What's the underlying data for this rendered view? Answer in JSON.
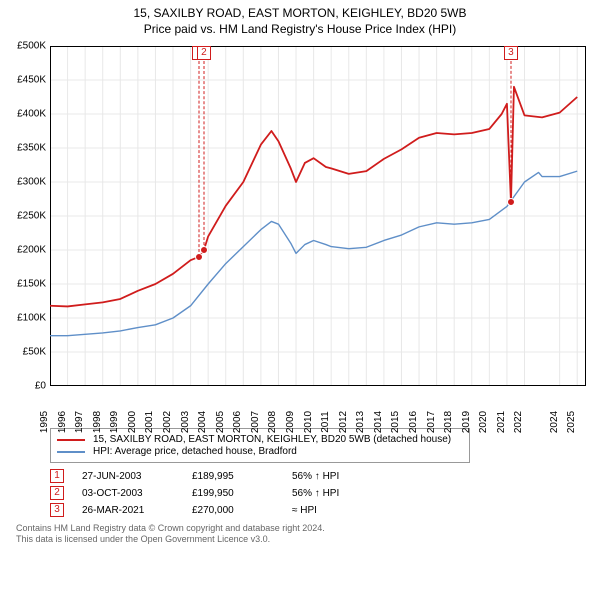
{
  "title": "15, SAXILBY ROAD, EAST MORTON, KEIGHLEY, BD20 5WB",
  "subtitle": "Price paid vs. HM Land Registry's House Price Index (HPI)",
  "chart": {
    "type": "line",
    "background_color": "#ffffff",
    "grid_color": "#e8e8e8",
    "axis_color": "#000000",
    "font_size_labels": 10,
    "x": {
      "min": 1995,
      "max": 2025.5,
      "ticks": [
        1995,
        1996,
        1997,
        1998,
        1999,
        2000,
        2001,
        2002,
        2003,
        2004,
        2005,
        2006,
        2007,
        2008,
        2009,
        2010,
        2011,
        2012,
        2013,
        2014,
        2015,
        2016,
        2017,
        2018,
        2019,
        2020,
        2021,
        2022,
        2024,
        2025
      ]
    },
    "y": {
      "min": 0,
      "max": 500000,
      "tick_step": 50000,
      "prefix": "£",
      "suffix": "K",
      "divide": 1000
    },
    "series": [
      {
        "name": "15, SAXILBY ROAD, EAST MORTON, KEIGHLEY, BD20 5WB (detached house)",
        "color": "#d01c1c",
        "line_width": 1.8,
        "points": [
          [
            1995,
            118000
          ],
          [
            1996,
            117000
          ],
          [
            1997,
            120000
          ],
          [
            1998,
            123000
          ],
          [
            1999,
            128000
          ],
          [
            2000,
            140000
          ],
          [
            2001,
            150000
          ],
          [
            2002,
            165000
          ],
          [
            2003,
            185000
          ],
          [
            2003.48,
            189995
          ],
          [
            2003.76,
            199950
          ],
          [
            2004,
            220000
          ],
          [
            2005,
            265000
          ],
          [
            2006,
            300000
          ],
          [
            2007,
            355000
          ],
          [
            2007.6,
            375000
          ],
          [
            2008,
            360000
          ],
          [
            2008.7,
            320000
          ],
          [
            2009,
            300000
          ],
          [
            2009.5,
            328000
          ],
          [
            2010,
            335000
          ],
          [
            2010.7,
            322000
          ],
          [
            2011,
            320000
          ],
          [
            2012,
            312000
          ],
          [
            2013,
            316000
          ],
          [
            2014,
            334000
          ],
          [
            2015,
            348000
          ],
          [
            2016,
            365000
          ],
          [
            2017,
            372000
          ],
          [
            2018,
            370000
          ],
          [
            2019,
            372000
          ],
          [
            2020,
            378000
          ],
          [
            2020.7,
            400000
          ],
          [
            2021,
            415000
          ],
          [
            2021.23,
            270000
          ],
          [
            2021.4,
            440000
          ],
          [
            2022,
            398000
          ],
          [
            2023,
            395000
          ],
          [
            2024,
            402000
          ],
          [
            2025,
            425000
          ]
        ]
      },
      {
        "name": "HPI: Average price, detached house, Bradford",
        "color": "#5f8fc8",
        "line_width": 1.4,
        "points": [
          [
            1995,
            74000
          ],
          [
            1996,
            74000
          ],
          [
            1997,
            76000
          ],
          [
            1998,
            78000
          ],
          [
            1999,
            81000
          ],
          [
            2000,
            86000
          ],
          [
            2001,
            90000
          ],
          [
            2002,
            100000
          ],
          [
            2003,
            118000
          ],
          [
            2004,
            150000
          ],
          [
            2005,
            180000
          ],
          [
            2006,
            205000
          ],
          [
            2007,
            230000
          ],
          [
            2007.6,
            242000
          ],
          [
            2008,
            238000
          ],
          [
            2008.7,
            210000
          ],
          [
            2009,
            195000
          ],
          [
            2009.5,
            208000
          ],
          [
            2010,
            214000
          ],
          [
            2010.7,
            208000
          ],
          [
            2011,
            205000
          ],
          [
            2012,
            202000
          ],
          [
            2013,
            204000
          ],
          [
            2014,
            214000
          ],
          [
            2015,
            222000
          ],
          [
            2016,
            234000
          ],
          [
            2017,
            240000
          ],
          [
            2018,
            238000
          ],
          [
            2019,
            240000
          ],
          [
            2020,
            245000
          ],
          [
            2021,
            264000
          ],
          [
            2022,
            300000
          ],
          [
            2022.8,
            314000
          ],
          [
            2023,
            308000
          ],
          [
            2024,
            308000
          ],
          [
            2025,
            316000
          ]
        ]
      }
    ],
    "markers": [
      {
        "n": "1",
        "x": 2003.48,
        "y": 189995
      },
      {
        "n": "2",
        "x": 2003.76,
        "y": 199950
      },
      {
        "n": "3",
        "x": 2021.23,
        "y": 270000
      }
    ]
  },
  "legend": {
    "items": [
      {
        "color": "#d01c1c",
        "label": "15, SAXILBY ROAD, EAST MORTON, KEIGHLEY, BD20 5WB (detached house)"
      },
      {
        "color": "#5f8fc8",
        "label": "HPI: Average price, detached house, Bradford"
      }
    ]
  },
  "sales": [
    {
      "n": "1",
      "date": "27-JUN-2003",
      "price": "£189,995",
      "rel": "56% ↑ HPI"
    },
    {
      "n": "2",
      "date": "03-OCT-2003",
      "price": "£199,950",
      "rel": "56% ↑ HPI"
    },
    {
      "n": "3",
      "date": "26-MAR-2021",
      "price": "£270,000",
      "rel": "≈ HPI"
    }
  ],
  "footer": {
    "line1": "Contains HM Land Registry data © Crown copyright and database right 2024.",
    "line2": "This data is licensed under the Open Government Licence v3.0."
  }
}
